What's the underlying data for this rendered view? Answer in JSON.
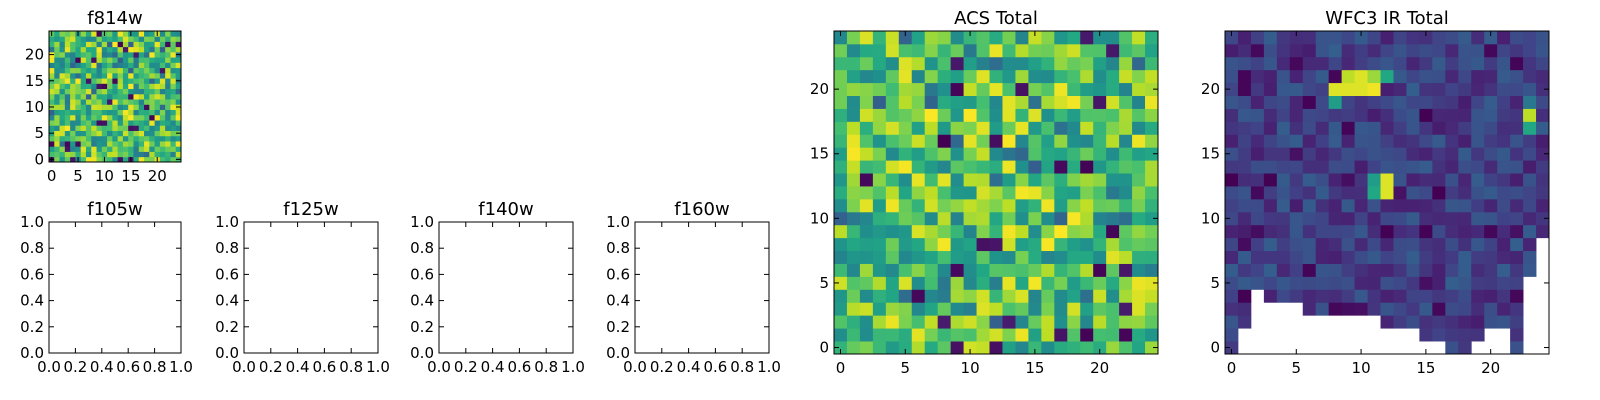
{
  "figure": {
    "background": "#ffffff",
    "colormap": "viridis"
  },
  "chart_data": [
    {
      "id": "f814w",
      "type": "heatmap",
      "title": "f814w",
      "grid_size": 25,
      "xlim": [
        -0.5,
        24.5
      ],
      "ylim": [
        -0.5,
        24.5
      ],
      "xticks": [
        0,
        5,
        10,
        15,
        20
      ],
      "yticks": [
        0,
        5,
        10,
        15,
        20
      ],
      "xtick_labels": [
        "0",
        "5",
        "10",
        "15",
        "20"
      ],
      "ytick_labels": [
        "0",
        "5",
        "10",
        "15",
        "20"
      ],
      "value_range": [
        0,
        1
      ],
      "cmap": "viridis",
      "pattern": "random-mid-high"
    },
    {
      "id": "f105w",
      "type": "heatmap",
      "title": "f105w",
      "empty": true,
      "xlim": [
        0,
        1
      ],
      "ylim": [
        0,
        1
      ],
      "xticks": [
        0,
        0.2,
        0.4,
        0.6,
        0.8,
        1.0
      ],
      "yticks": [
        0,
        0.2,
        0.4,
        0.6,
        0.8,
        1.0
      ],
      "xtick_labels": [
        "0.0",
        "0.2",
        "0.4",
        "0.6",
        "0.8",
        "1.0"
      ],
      "ytick_labels": [
        "0.0",
        "0.2",
        "0.4",
        "0.6",
        "0.8",
        "1.0"
      ]
    },
    {
      "id": "f125w",
      "type": "heatmap",
      "title": "f125w",
      "empty": true,
      "xlim": [
        0,
        1
      ],
      "ylim": [
        0,
        1
      ],
      "xticks": [
        0,
        0.2,
        0.4,
        0.6,
        0.8,
        1.0
      ],
      "yticks": [
        0,
        0.2,
        0.4,
        0.6,
        0.8,
        1.0
      ],
      "xtick_labels": [
        "0.0",
        "0.2",
        "0.4",
        "0.6",
        "0.8",
        "1.0"
      ],
      "ytick_labels": [
        "0.0",
        "0.2",
        "0.4",
        "0.6",
        "0.8",
        "1.0"
      ]
    },
    {
      "id": "f140w",
      "type": "heatmap",
      "title": "f140w",
      "empty": true,
      "xlim": [
        0,
        1
      ],
      "ylim": [
        0,
        1
      ],
      "xticks": [
        0,
        0.2,
        0.4,
        0.6,
        0.8,
        1.0
      ],
      "yticks": [
        0,
        0.2,
        0.4,
        0.6,
        0.8,
        1.0
      ],
      "xtick_labels": [
        "0.0",
        "0.2",
        "0.4",
        "0.6",
        "0.8",
        "1.0"
      ],
      "ytick_labels": [
        "0.0",
        "0.2",
        "0.4",
        "0.6",
        "0.8",
        "1.0"
      ]
    },
    {
      "id": "f160w",
      "type": "heatmap",
      "title": "f160w",
      "empty": true,
      "xlim": [
        0,
        1
      ],
      "ylim": [
        0,
        1
      ],
      "xticks": [
        0,
        0.2,
        0.4,
        0.6,
        0.8,
        1.0
      ],
      "yticks": [
        0,
        0.2,
        0.4,
        0.6,
        0.8,
        1.0
      ],
      "xtick_labels": [
        "0.0",
        "0.2",
        "0.4",
        "0.6",
        "0.8",
        "1.0"
      ],
      "ytick_labels": [
        "0.0",
        "0.2",
        "0.4",
        "0.6",
        "0.8",
        "1.0"
      ]
    },
    {
      "id": "acs-total",
      "type": "heatmap",
      "title": "ACS Total",
      "grid_size": 25,
      "xlim": [
        -0.5,
        24.5
      ],
      "ylim": [
        -0.5,
        24.5
      ],
      "xticks": [
        0,
        5,
        10,
        15,
        20
      ],
      "yticks": [
        0,
        5,
        10,
        15,
        20
      ],
      "xtick_labels": [
        "0",
        "5",
        "10",
        "15",
        "20"
      ],
      "ytick_labels": [
        "0",
        "5",
        "10",
        "15",
        "20"
      ],
      "value_range": [
        0,
        1
      ],
      "cmap": "viridis",
      "pattern": "random-mid-high"
    },
    {
      "id": "wfc3-ir-total",
      "type": "heatmap",
      "title": "WFC3 IR Total",
      "grid_size": 25,
      "xlim": [
        -0.5,
        24.5
      ],
      "ylim": [
        -0.5,
        24.5
      ],
      "xticks": [
        0,
        5,
        10,
        15,
        20
      ],
      "yticks": [
        0,
        5,
        10,
        15,
        20
      ],
      "xtick_labels": [
        "0",
        "5",
        "10",
        "15",
        "20"
      ],
      "ytick_labels": [
        "0",
        "5",
        "10",
        "15",
        "20"
      ],
      "value_range": [
        0,
        1
      ],
      "cmap": "viridis",
      "pattern": "low-with-hotspots",
      "hotspots": [
        {
          "x": 8,
          "y": 20,
          "v": 0.95
        },
        {
          "x": 9,
          "y": 20,
          "v": 0.95
        },
        {
          "x": 10,
          "y": 20,
          "v": 0.95
        },
        {
          "x": 11,
          "y": 20,
          "v": 0.98
        },
        {
          "x": 9,
          "y": 21,
          "v": 0.9
        },
        {
          "x": 10,
          "y": 21,
          "v": 0.95
        },
        {
          "x": 11,
          "y": 21,
          "v": 0.85
        },
        {
          "x": 8,
          "y": 19,
          "v": 0.55
        },
        {
          "x": 12,
          "y": 21,
          "v": 0.6
        },
        {
          "x": 12,
          "y": 12,
          "v": 0.95
        },
        {
          "x": 12,
          "y": 13,
          "v": 0.95
        },
        {
          "x": 11,
          "y": 12,
          "v": 0.6
        },
        {
          "x": 11,
          "y": 13,
          "v": 0.55
        },
        {
          "x": 23,
          "y": 18,
          "v": 0.9
        },
        {
          "x": 23,
          "y": 17,
          "v": 0.6
        },
        {
          "x": 23,
          "y": 19,
          "v": 0.4
        }
      ],
      "masked_cells_note_from_edges": true,
      "mask_bottom_rows_by_column": [
        0,
        2,
        5,
        4,
        4,
        4,
        3,
        3,
        3,
        3,
        3,
        3,
        2,
        2,
        2,
        1,
        1,
        0,
        0,
        1,
        2,
        2,
        0,
        6,
        9
      ]
    }
  ]
}
